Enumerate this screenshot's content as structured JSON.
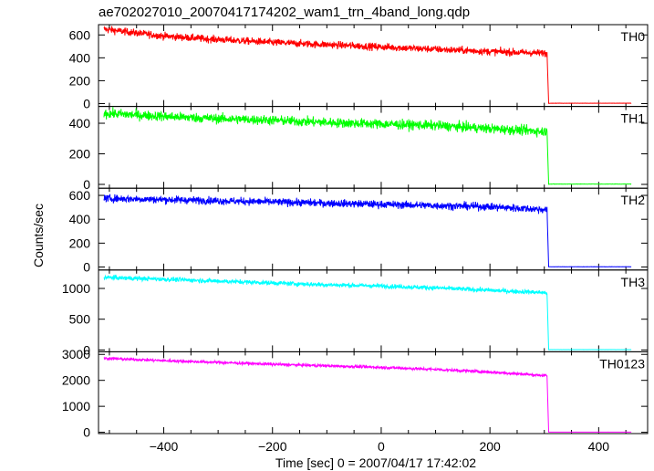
{
  "chart_data": {
    "type": "line",
    "title": "ae702027010_20070417174202_wam1_trn_4band_long.qdp",
    "xlabel": "Time [sec] 0 = 2007/04/17 17:42:02",
    "ylabel": "Counts/sec",
    "xlim": [
      -520,
      490
    ],
    "x_ticks": [
      -400,
      -200,
      0,
      200,
      400
    ],
    "x_tick_labels": [
      "−400",
      "−200",
      "0",
      "200",
      "400"
    ],
    "grid": false,
    "panels": [
      {
        "name": "TH0",
        "color": "#ff0000",
        "ylim": [
          -25,
          690
        ],
        "yticks": [
          0,
          200,
          400,
          600
        ],
        "x": [
          -510,
          -400,
          -300,
          -200,
          -100,
          0,
          100,
          200,
          305,
          308,
          460
        ],
        "values": [
          650,
          590,
          560,
          535,
          515,
          495,
          475,
          455,
          440,
          3,
          3
        ],
        "noise": 30
      },
      {
        "name": "TH1",
        "color": "#00ff00",
        "ylim": [
          -25,
          510
        ],
        "yticks": [
          0,
          200,
          400
        ],
        "x": [
          -510,
          -400,
          -300,
          -200,
          -100,
          0,
          100,
          200,
          305,
          308,
          460
        ],
        "values": [
          465,
          445,
          430,
          420,
          405,
          395,
          385,
          365,
          345,
          2,
          2
        ],
        "noise": 30
      },
      {
        "name": "TH2",
        "color": "#0000ff",
        "ylim": [
          -25,
          660
        ],
        "yticks": [
          0,
          200,
          400,
          600
        ],
        "x": [
          -510,
          -400,
          -300,
          -200,
          -100,
          0,
          100,
          200,
          305,
          308,
          460
        ],
        "values": [
          575,
          565,
          555,
          545,
          535,
          525,
          515,
          505,
          480,
          2,
          2
        ],
        "noise": 30
      },
      {
        "name": "TH3",
        "color": "#00ffff",
        "ylim": [
          -30,
          1300
        ],
        "yticks": [
          0,
          500,
          1000
        ],
        "x": [
          -510,
          -400,
          -300,
          -200,
          -100,
          0,
          100,
          200,
          305,
          308,
          460
        ],
        "values": [
          1180,
          1150,
          1120,
          1090,
          1060,
          1040,
          1010,
          970,
          930,
          5,
          5
        ],
        "noise": 35
      },
      {
        "name": "TH0123",
        "color": "#ff00ff",
        "ylim": [
          -50,
          3100
        ],
        "yticks": [
          0,
          1000,
          2000,
          3000
        ],
        "x": [
          -510,
          -400,
          -300,
          -200,
          -100,
          0,
          100,
          200,
          305,
          308,
          460
        ],
        "values": [
          2850,
          2760,
          2690,
          2620,
          2560,
          2500,
          2420,
          2320,
          2180,
          8,
          8
        ],
        "noise": 55
      }
    ]
  }
}
